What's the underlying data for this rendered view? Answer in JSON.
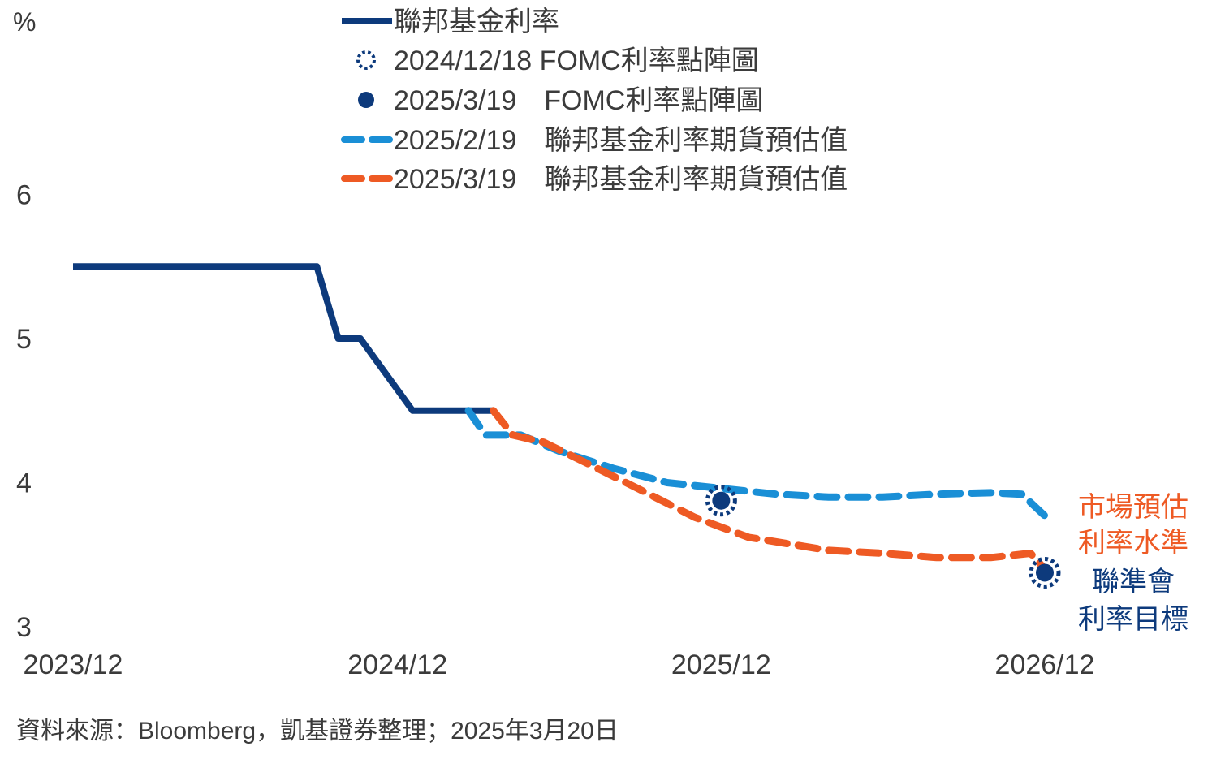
{
  "chart_data": {
    "type": "line",
    "ylabel": "%",
    "ylim": [
      3,
      7
    ],
    "yticks": [
      "3",
      "4",
      "5",
      "6"
    ],
    "xlim": [
      "2023/12",
      "2026/12"
    ],
    "xticks": [
      "2023/12",
      "2024/12",
      "2025/12",
      "2026/12"
    ],
    "grid": false,
    "legend_position": "top",
    "series": [
      {
        "name": "聯邦基金利率",
        "style": "solid",
        "color": "#0d3a7c",
        "points": [
          [
            "2023-12-01",
            5.5
          ],
          [
            "2024-09-01",
            5.5
          ],
          [
            "2024-09-25",
            5.0
          ],
          [
            "2024-10-20",
            5.0
          ],
          [
            "2024-12-18",
            4.5
          ],
          [
            "2025-03-19",
            4.5
          ]
        ]
      },
      {
        "name": "2025/2/19　聯邦基金利率期貨預估值",
        "style": "dashed",
        "color": "#1a8fd6",
        "points": [
          [
            "2025-02-19",
            4.5
          ],
          [
            "2025-03-10",
            4.33
          ],
          [
            "2025-04-19",
            4.33
          ],
          [
            "2025-06-01",
            4.22
          ],
          [
            "2025-08-01",
            4.1
          ],
          [
            "2025-10-01",
            4.0
          ],
          [
            "2025-12-01",
            3.96
          ],
          [
            "2026-02-01",
            3.92
          ],
          [
            "2026-04-01",
            3.9
          ],
          [
            "2026-06-01",
            3.9
          ],
          [
            "2026-08-01",
            3.92
          ],
          [
            "2026-10-01",
            3.93
          ],
          [
            "2026-11-05",
            3.92
          ],
          [
            "2026-12-01",
            3.77
          ]
        ]
      },
      {
        "name": "2025/3/19　聯邦基金利率期貨預估值",
        "style": "dashed",
        "color": "#ee5a24",
        "points": [
          [
            "2025-03-19",
            4.5
          ],
          [
            "2025-04-10",
            4.33
          ],
          [
            "2025-05-15",
            4.28
          ],
          [
            "2025-07-01",
            4.14
          ],
          [
            "2025-09-01",
            3.95
          ],
          [
            "2025-11-01",
            3.76
          ],
          [
            "2026-01-01",
            3.62
          ],
          [
            "2026-04-01",
            3.53
          ],
          [
            "2026-06-01",
            3.51
          ],
          [
            "2026-08-01",
            3.48
          ],
          [
            "2026-10-01",
            3.48
          ],
          [
            "2026-11-15",
            3.51
          ],
          [
            "2026-12-01",
            3.4
          ]
        ]
      }
    ],
    "dots": [
      {
        "name": "2024/12/18 FOMC利率點陣圖",
        "marker": "dotted-ring",
        "color": "#0d3a7c",
        "points": [
          [
            "2025-12-01",
            3.875
          ],
          [
            "2026-12-01",
            3.375
          ]
        ]
      },
      {
        "name": "2025/3/19　FOMC利率點陣圖",
        "marker": "filled-circle",
        "color": "#0d3a7c",
        "points": [
          [
            "2025-12-01",
            3.875
          ],
          [
            "2026-12-01",
            3.375
          ]
        ]
      }
    ],
    "annotations": [
      {
        "lines": [
          "市場預估",
          "利率水準"
        ],
        "color": "#ee5a24"
      },
      {
        "lines": [
          "聯準會",
          "利率目標"
        ],
        "color": "#0d3a7c"
      }
    ]
  },
  "source_note": "資料來源：Bloomberg，凱基證券整理；2025年3月20日"
}
